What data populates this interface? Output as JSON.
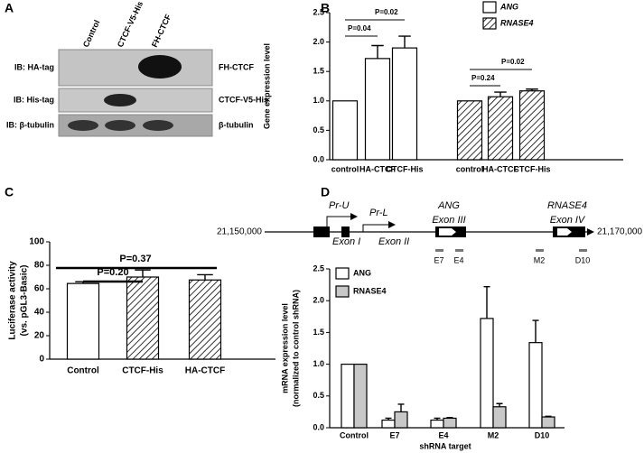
{
  "panel_labels": [
    "A",
    "B",
    "C",
    "D"
  ],
  "blot": {
    "lanes": [
      "Control",
      "CTCF-V5-His",
      "FH-CTCF"
    ],
    "rows": [
      "IB: HA-tag",
      "IB: His-tag",
      "IB: β-tubulin"
    ],
    "bands": [
      "FH-CTCF",
      "CTCF-V5-His",
      "β-tubulin"
    ]
  },
  "gene_map": {
    "start": "21,150,000",
    "end": "21,170,000",
    "promoters": [
      "Pr-U",
      "Pr-L"
    ],
    "exons": [
      "Exon I",
      "Exon II",
      "Exon III",
      "Exon IV"
    ],
    "genes": [
      "ANG",
      "RNASE4"
    ],
    "targets": [
      "E7",
      "E4",
      "M2",
      "D10"
    ]
  },
  "chart_data": [
    {
      "type": "bar",
      "ylabel": [
        "Gene expression level"
      ],
      "categories": [
        "control",
        "HA-CTCF",
        "CTCF-His",
        "control",
        "HA-CTCF",
        "CTCF-His"
      ],
      "series": [
        {
          "name": "ANG",
          "color": "#ffffff",
          "hatch": false,
          "values": [
            1,
            1.72,
            1.9,
            null,
            null,
            null
          ],
          "errors": [
            0,
            0.22,
            0.2,
            null,
            null,
            null
          ]
        },
        {
          "name": "RNASE4",
          "color": "#ffffff",
          "hatch": true,
          "values": [
            null,
            null,
            null,
            1,
            1.07,
            1.17
          ],
          "errors": [
            null,
            null,
            null,
            0,
            0.08,
            0.03
          ]
        }
      ],
      "ylim": [
        0,
        2.5
      ],
      "yticks": [
        {
          "value": 0,
          "label": "0.0"
        },
        {
          "value": 0.5,
          "label": "0.5"
        },
        {
          "value": 1,
          "label": "1.0"
        },
        {
          "value": 1.5,
          "label": "1.5"
        },
        {
          "value": 2,
          "label": "2.0"
        },
        {
          "value": 2.5,
          "label": "2.5"
        }
      ],
      "annotations": [
        "P=0.04",
        "P=0.02",
        "P=0.24",
        "P=0.02"
      ],
      "legend": "top-right"
    },
    {
      "type": "bar",
      "ylabel": [
        "Luciferase activity",
        "(vs. pGL3-Basic)"
      ],
      "categories": [
        "Control",
        "CTCF-His",
        "HA-CTCF"
      ],
      "series": [
        {
          "color": "#ffffff",
          "hatch": [
            false,
            true,
            true
          ],
          "values": [
            64.5,
            70,
            67.5
          ],
          "errors": [
            1.5,
            6,
            4.5
          ]
        }
      ],
      "ylim": [
        0,
        100
      ],
      "yticks": [
        0,
        20,
        40,
        60,
        80,
        100
      ],
      "annotations": [
        "P=0.20",
        "P=0.37"
      ]
    },
    {
      "type": "bar",
      "ylabel": [
        "mRNA expression level",
        "(normalized to control shRNA)"
      ],
      "xlabel": "shRNA target",
      "categories": [
        "Control",
        "E7",
        "E4",
        "M2",
        "D10"
      ],
      "series": [
        {
          "name": "ANG",
          "color": "#ffffff",
          "hatch": false,
          "values": [
            1,
            0.12,
            0.12,
            1.72,
            1.34
          ],
          "errors": [
            0,
            0.03,
            0.03,
            0.5,
            0.35
          ]
        },
        {
          "name": "RNASE4",
          "color": "#c8c8c8",
          "hatch": false,
          "values": [
            1,
            0.25,
            0.15,
            0.33,
            0.17
          ],
          "errors": [
            0,
            0.12,
            0.01,
            0.05,
            0.01
          ]
        }
      ],
      "ylim": [
        0,
        2.5
      ],
      "yticks": [
        {
          "value": 0,
          "label": "0.0"
        },
        {
          "value": 0.5,
          "label": "0.5"
        },
        {
          "value": 1,
          "label": "1.0"
        },
        {
          "value": 1.5,
          "label": "1.5"
        },
        {
          "value": 2,
          "label": "2.0"
        },
        {
          "value": 2.5,
          "label": "2.5"
        }
      ],
      "legend": "top-left"
    }
  ]
}
